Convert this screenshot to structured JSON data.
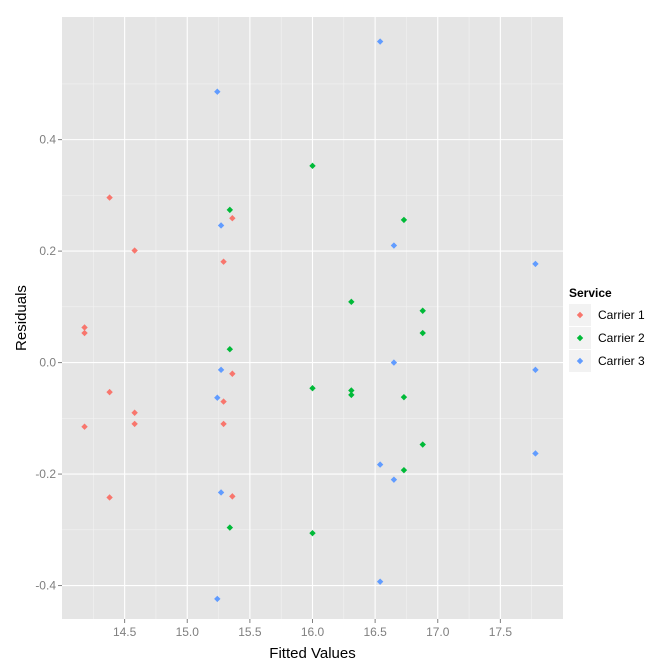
{
  "chart_data": {
    "type": "scatter",
    "xlabel": "Fitted Values",
    "ylabel": "Residuals",
    "xlim": [
      14.0,
      18.0
    ],
    "ylim": [
      -0.46,
      0.62
    ],
    "x_ticks": [
      14.5,
      15.0,
      15.5,
      16.0,
      16.5,
      17.0,
      17.5
    ],
    "x_tick_labels": [
      "14.5",
      "15.0",
      "15.5",
      "16.0",
      "16.5",
      "17.0",
      "17.5"
    ],
    "y_ticks": [
      -0.4,
      -0.2,
      0.0,
      0.2,
      0.4
    ],
    "y_tick_labels": [
      "-0.4",
      "-0.2",
      "0.0",
      "0.2",
      "0.4"
    ],
    "grid": true,
    "legend": {
      "title": "Service",
      "position": "right"
    },
    "series": [
      {
        "name": "Carrier 1",
        "color": "#F8766D",
        "points": [
          [
            14.18,
            0.063
          ],
          [
            14.18,
            0.053
          ],
          [
            14.18,
            -0.115
          ],
          [
            14.38,
            0.296
          ],
          [
            14.38,
            -0.053
          ],
          [
            14.38,
            -0.242
          ],
          [
            14.58,
            0.201
          ],
          [
            14.58,
            -0.09
          ],
          [
            14.58,
            -0.11
          ],
          [
            15.29,
            0.181
          ],
          [
            15.29,
            -0.07
          ],
          [
            15.29,
            -0.11
          ],
          [
            15.36,
            0.259
          ],
          [
            15.36,
            -0.02
          ],
          [
            15.36,
            -0.24
          ]
        ]
      },
      {
        "name": "Carrier 2",
        "color": "#00BA38",
        "points": [
          [
            15.34,
            0.274
          ],
          [
            15.34,
            0.024
          ],
          [
            15.34,
            -0.296
          ],
          [
            16.0,
            0.353
          ],
          [
            16.0,
            -0.046
          ],
          [
            16.0,
            -0.306
          ],
          [
            16.31,
            0.109
          ],
          [
            16.31,
            -0.05
          ],
          [
            16.31,
            -0.058
          ],
          [
            16.73,
            0.256
          ],
          [
            16.73,
            -0.062
          ],
          [
            16.73,
            -0.193
          ],
          [
            16.88,
            0.093
          ],
          [
            16.88,
            0.053
          ],
          [
            16.88,
            -0.147
          ]
        ]
      },
      {
        "name": "Carrier 3",
        "color": "#619CFF",
        "points": [
          [
            15.24,
            0.486
          ],
          [
            15.24,
            -0.063
          ],
          [
            15.24,
            -0.424
          ],
          [
            15.27,
            0.246
          ],
          [
            15.27,
            -0.013
          ],
          [
            15.27,
            -0.233
          ],
          [
            16.54,
            0.576
          ],
          [
            16.54,
            -0.183
          ],
          [
            16.54,
            -0.393
          ],
          [
            16.65,
            0.21
          ],
          [
            16.65,
            0.0
          ],
          [
            16.65,
            -0.21
          ],
          [
            17.78,
            0.177
          ],
          [
            17.78,
            -0.013
          ],
          [
            17.78,
            -0.163
          ]
        ]
      }
    ]
  }
}
